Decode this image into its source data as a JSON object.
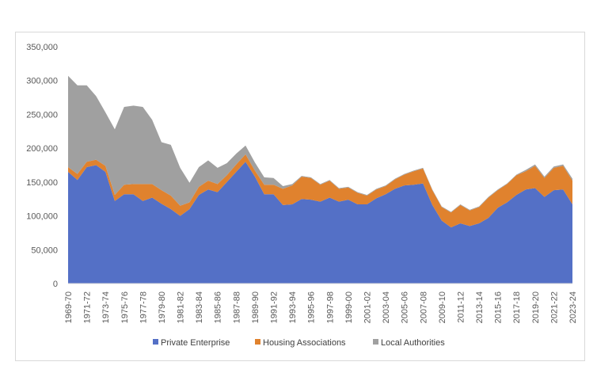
{
  "chart_data": {
    "type": "area",
    "stacked": true,
    "title": "",
    "xlabel": "",
    "ylabel": "",
    "ylim": [
      0,
      350000
    ],
    "yticks": [
      0,
      50000,
      100000,
      150000,
      200000,
      250000,
      300000,
      350000
    ],
    "ytick_labels": [
      "0",
      "50,000",
      "100,000",
      "150,000",
      "200,000",
      "250,000",
      "300,000",
      "350,000"
    ],
    "grid": false,
    "legend_position": "bottom",
    "x": [
      "1969-70",
      "1970-71",
      "1971-72",
      "1972-73",
      "1973-74",
      "1974-75",
      "1975-76",
      "1976-77",
      "1977-78",
      "1978-79",
      "1979-80",
      "1980-81",
      "1981-82",
      "1982-83",
      "1983-84",
      "1984-85",
      "1985-86",
      "1986-87",
      "1987-88",
      "1988-89",
      "1989-90",
      "1990-91",
      "1991-92",
      "1992-93",
      "1993-94",
      "1994-95",
      "1995-96",
      "1996-97",
      "1997-98",
      "1998-99",
      "1999-00",
      "2000-01",
      "2001-02",
      "2002-03",
      "2003-04",
      "2004-05",
      "2005-06",
      "2006-07",
      "2007-08",
      "2008-09",
      "2009-10",
      "2010-11",
      "2011-12",
      "2012-13",
      "2013-14",
      "2014-15",
      "2015-16",
      "2016-17",
      "2017-18",
      "2018-19",
      "2019-20",
      "2020-21",
      "2021-22",
      "2022-23",
      "2023-24"
    ],
    "x_tick_labels": [
      "1969-70",
      "1971-72",
      "1973-74",
      "1975-76",
      "1977-78",
      "1979-80",
      "1981-82",
      "1983-84",
      "1985-86",
      "1987-88",
      "1989-90",
      "1991-92",
      "1993-94",
      "1995-96",
      "1997-98",
      "1999-00",
      "2001-02",
      "2003-04",
      "2005-06",
      "2007-08",
      "2009-10",
      "2011-12",
      "2013-14",
      "2015-16",
      "2017-18",
      "2019-20",
      "2021-22",
      "2023-24"
    ],
    "series": [
      {
        "name": "Private Enterprise",
        "color": "#5470c6",
        "values": [
          165000,
          153000,
          172000,
          175000,
          165000,
          122000,
          132000,
          132000,
          122000,
          127000,
          118000,
          110000,
          100000,
          110000,
          131000,
          139000,
          135000,
          150000,
          165000,
          180000,
          158000,
          132000,
          132000,
          116000,
          117000,
          125000,
          124000,
          121000,
          127000,
          121000,
          124000,
          117000,
          117000,
          126000,
          132000,
          140000,
          145000,
          146000,
          148000,
          116000,
          93000,
          83000,
          89000,
          85000,
          89000,
          97000,
          112000,
          120000,
          131000,
          139000,
          141000,
          128000,
          138000,
          139000,
          117000
        ]
      },
      {
        "name": "Housing Associations",
        "color": "#e0822e",
        "values": [
          7000,
          9000,
          8000,
          8000,
          9000,
          9000,
          14000,
          15000,
          25000,
          20000,
          20000,
          20000,
          15000,
          10000,
          12000,
          13000,
          12000,
          10000,
          11000,
          11000,
          9000,
          14000,
          14000,
          24000,
          28000,
          33000,
          32000,
          25000,
          25000,
          19000,
          18000,
          17000,
          13000,
          13000,
          12000,
          14000,
          16000,
          20000,
          22000,
          22000,
          20000,
          22000,
          27000,
          23000,
          24000,
          30000,
          26000,
          27000,
          29000,
          27000,
          33000,
          28000,
          33000,
          35000,
          35000
        ]
      },
      {
        "name": "Local Authorities",
        "color": "#a0a0a0",
        "values": [
          135000,
          131000,
          113000,
          94000,
          79000,
          97000,
          115000,
          116000,
          114000,
          95000,
          71000,
          75000,
          56000,
          29000,
          29000,
          30000,
          24000,
          18000,
          16000,
          13000,
          12000,
          11000,
          10000,
          4000,
          2000,
          1000,
          1000,
          1000,
          1000,
          1000,
          1000,
          1000,
          1000,
          1000,
          1000,
          1000,
          1000,
          1000,
          1000,
          1000,
          1000,
          1000,
          1000,
          1000,
          1000,
          1000,
          1000,
          1000,
          1000,
          2000,
          2000,
          2000,
          2000,
          2000,
          3000
        ]
      }
    ]
  }
}
